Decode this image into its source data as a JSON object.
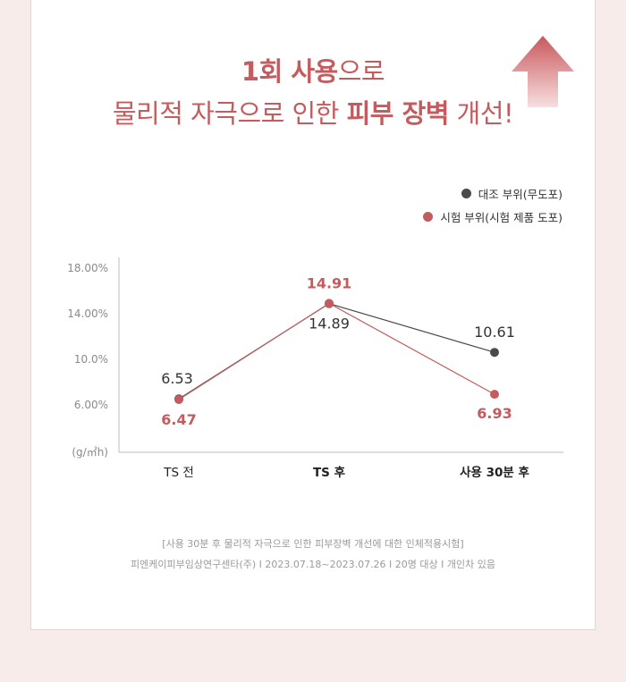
{
  "headline": {
    "line1_bold": "1회 사용",
    "line1_rest": "으로",
    "line2_pre": "물리적 자극으로 인한 ",
    "line2_bold": "피부 장벽",
    "line2_post": " 개선!"
  },
  "chart_data": {
    "type": "line",
    "categories": [
      "TS 전",
      "TS 후",
      "사용 30분 후"
    ],
    "series": [
      {
        "name": "대조 부위(무도포)",
        "values": [
          6.53,
          14.89,
          10.61
        ],
        "labels": [
          "6.53",
          "14.89",
          "10.61"
        ],
        "color": "#4a4a4a"
      },
      {
        "name": "시험 부위(시험 제품 도포)",
        "values": [
          6.47,
          14.91,
          6.93
        ],
        "labels": [
          "6.47",
          "14.91",
          "6.93"
        ],
        "color": "#c45c5f"
      }
    ],
    "yticks": [
      "18.00%",
      "14.00%",
      "10.0%",
      "6.00%"
    ],
    "ytick_values": [
      18,
      14,
      10,
      6
    ],
    "yunit": "(g/㎡h)",
    "ylim": [
      2,
      20
    ],
    "legend_position": "top-right",
    "grid": false
  },
  "footnote": {
    "line1": "[사용 30분 후 물리적 자극으로 인한 피부장벽 개선에 대한 인체적용시험]",
    "line2": "피엔케이피부임상연구센타(주) I 2023.07.18~2023.07.26 I 20명 대상 I 개인차 있음"
  },
  "colors": {
    "accent": "#c45c5f",
    "control": "#4a4a4a",
    "arrow_top": "#c9585d",
    "arrow_bottom": "#f7dfe0"
  },
  "icons": {
    "arrow": "up-arrow-icon"
  }
}
